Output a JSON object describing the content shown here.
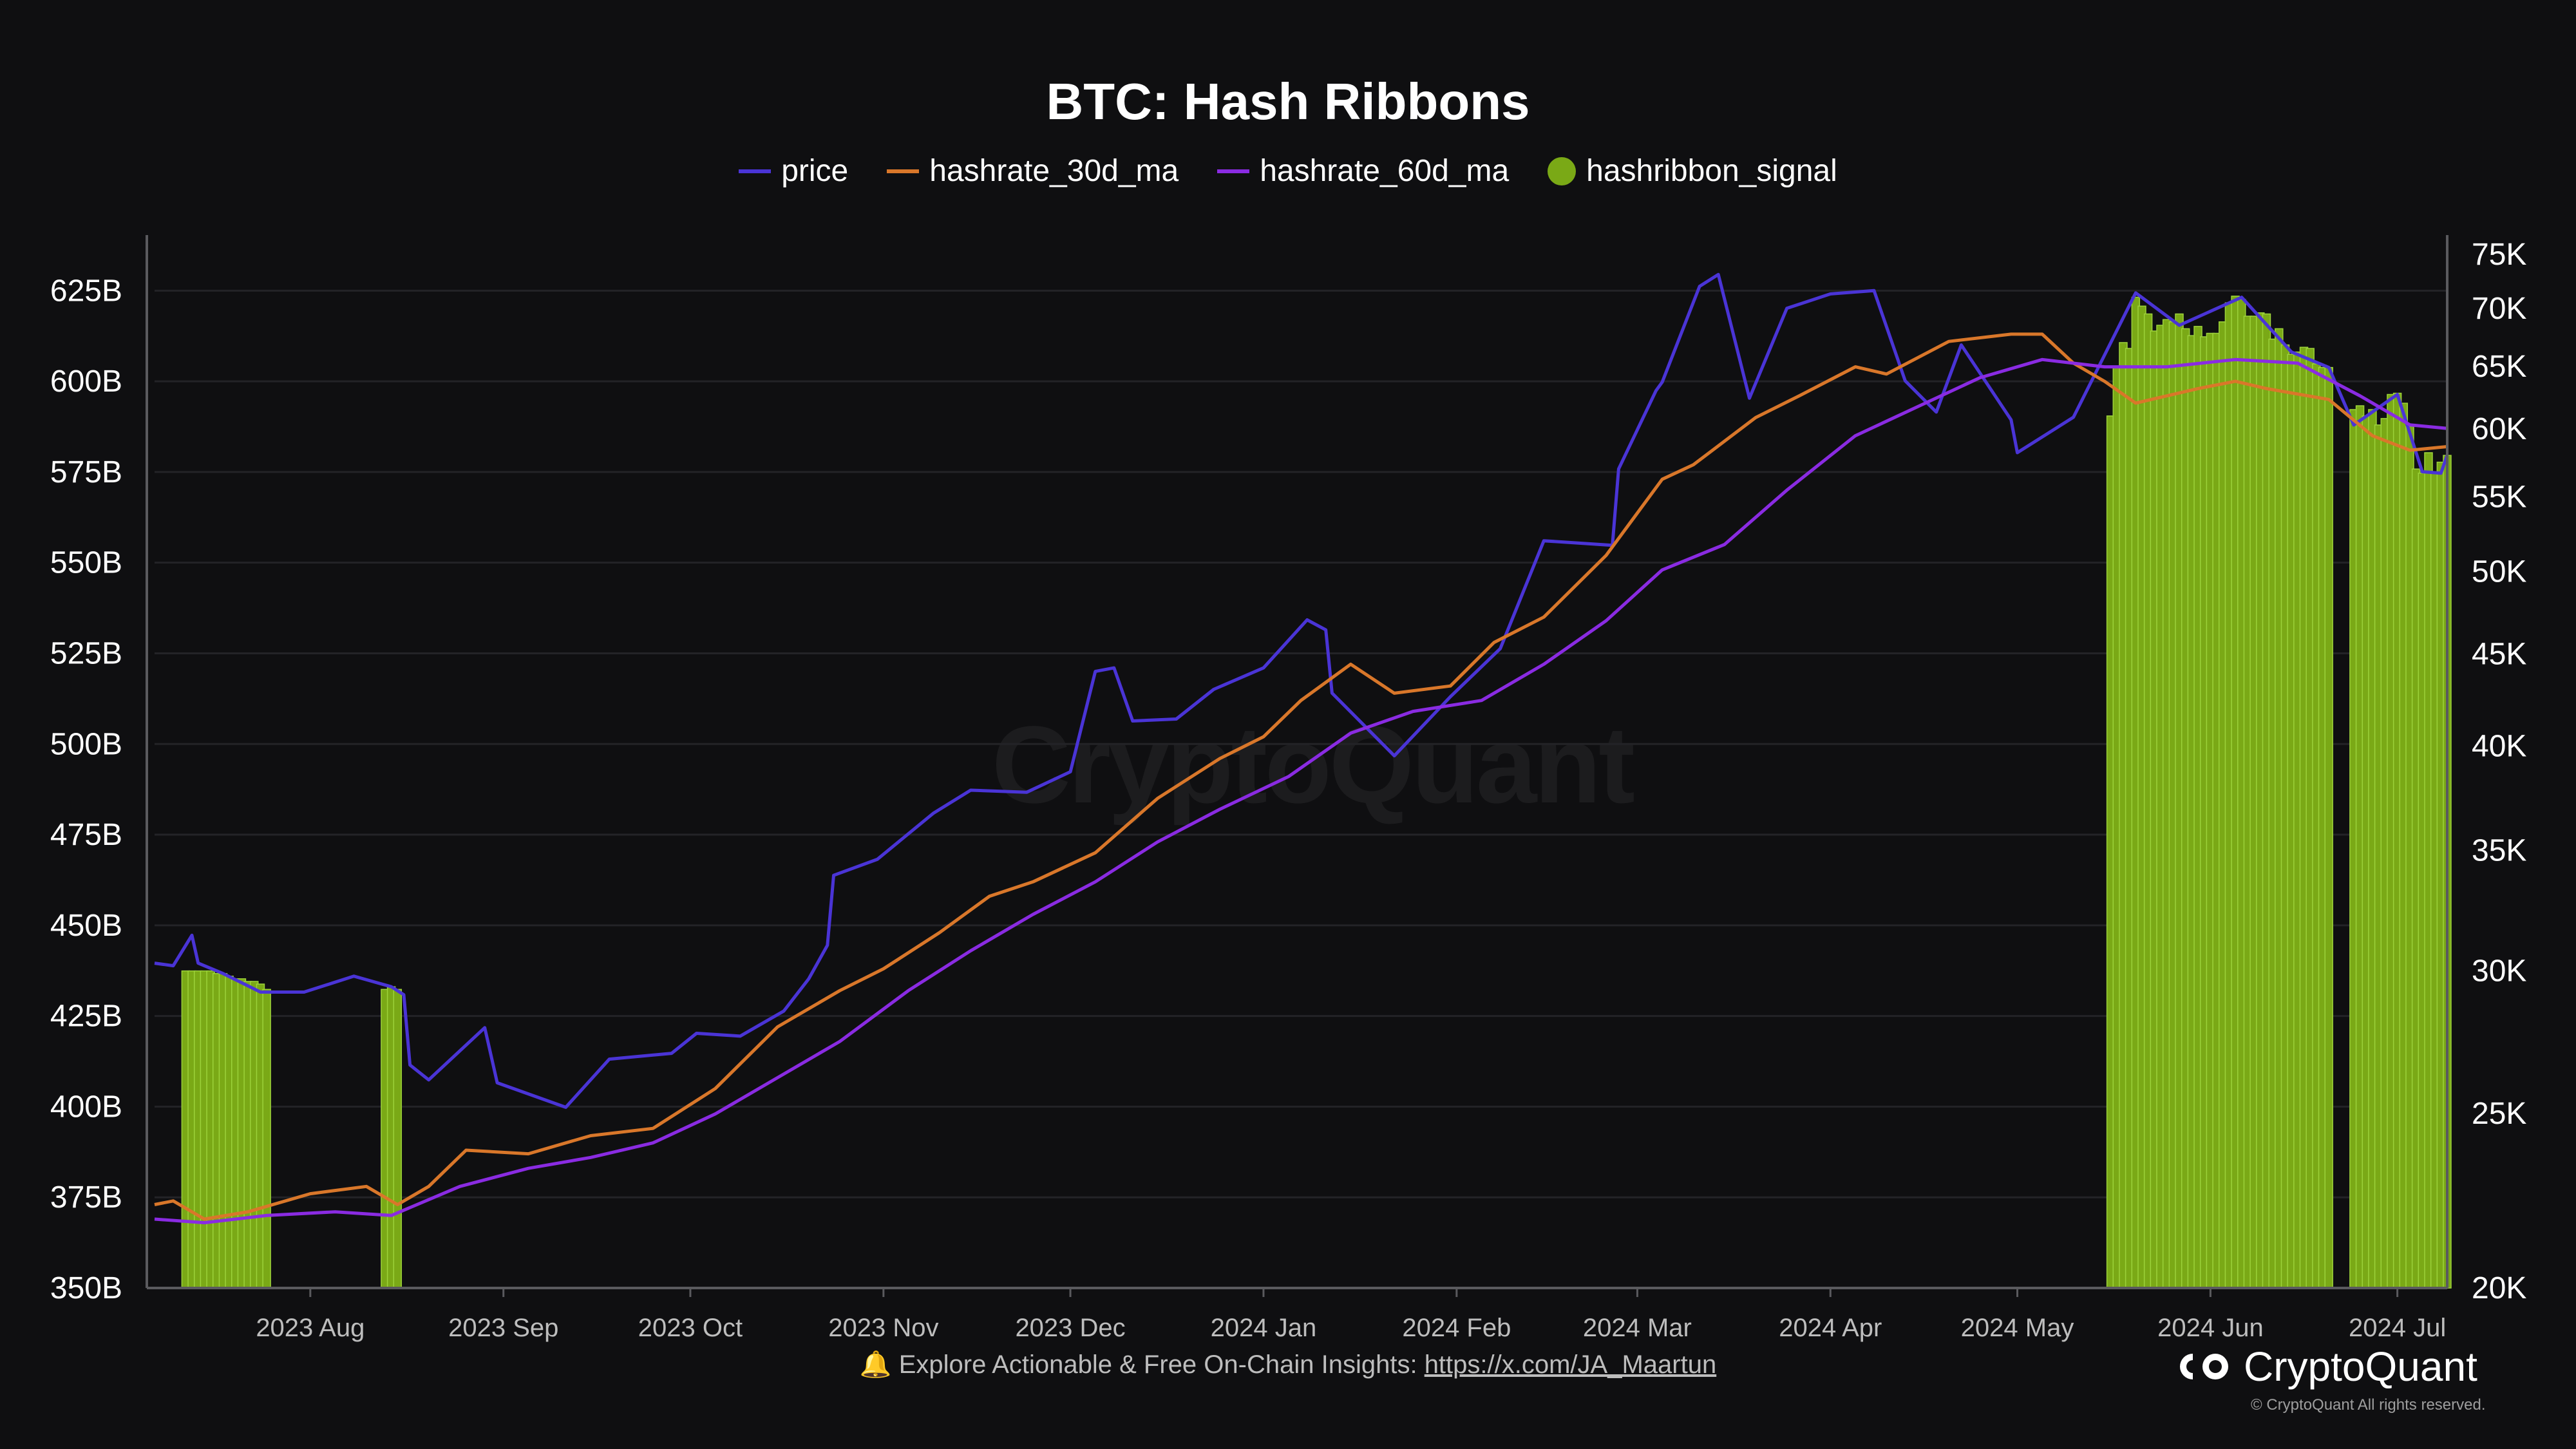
{
  "colors": {
    "price": "#4a34d6",
    "hashrate_30d_ma": "#d9772a",
    "hashrate_60d_ma": "#8a2be2",
    "hashribbon_signal": "#7aa916",
    "background": "#0f0f11",
    "grid": "#232327"
  },
  "footer": {
    "note_icon": "bell-icon",
    "note_text": "🔔 Explore Actionable & Free On-Chain Insights:",
    "note_link": "https://x.com/JA_Maartun"
  },
  "brand": {
    "name": "CryptoQuant",
    "copyright": "© CryptoQuant All rights reserved.",
    "watermark": "CryptoQuant"
  },
  "chart_data": {
    "type": "line",
    "title": "BTC: Hash Ribbons",
    "legend": [
      "price",
      "hashrate_30d_ma",
      "hashrate_60d_ma",
      "hashribbon_signal"
    ],
    "legend_position": "top-center",
    "grid": true,
    "x_range": [
      "2023-07-07",
      "2024-07-09"
    ],
    "x_ticks": [
      {
        "date": "2023-08-01",
        "label": "2023 Aug"
      },
      {
        "date": "2023-09-01",
        "label": "2023 Sep"
      },
      {
        "date": "2023-10-01",
        "label": "2023 Oct"
      },
      {
        "date": "2023-11-01",
        "label": "2023 Nov"
      },
      {
        "date": "2023-12-01",
        "label": "2023 Dec"
      },
      {
        "date": "2024-01-01",
        "label": "2024 Jan"
      },
      {
        "date": "2024-02-01",
        "label": "2024 Feb"
      },
      {
        "date": "2024-03-01",
        "label": "2024 Mar"
      },
      {
        "date": "2024-04-01",
        "label": "2024 Apr"
      },
      {
        "date": "2024-05-01",
        "label": "2024 May"
      },
      {
        "date": "2024-06-01",
        "label": "2024 Jun"
      },
      {
        "date": "2024-07-01",
        "label": "2024 Jul"
      }
    ],
    "y_left": {
      "ylim": [
        350,
        635
      ],
      "ticks": [
        {
          "v": 350,
          "label": "350B"
        },
        {
          "v": 375,
          "label": "375B"
        },
        {
          "v": 400,
          "label": "400B"
        },
        {
          "v": 425,
          "label": "425B"
        },
        {
          "v": 450,
          "label": "450B"
        },
        {
          "v": 475,
          "label": "475B"
        },
        {
          "v": 500,
          "label": "500B"
        },
        {
          "v": 525,
          "label": "525B"
        },
        {
          "v": 550,
          "label": "550B"
        },
        {
          "v": 575,
          "label": "575B"
        },
        {
          "v": 600,
          "label": "600B"
        },
        {
          "v": 625,
          "label": "625B"
        }
      ]
    },
    "y_right": {
      "scale": "log",
      "ylim": [
        20000,
        75000
      ],
      "ticks": [
        {
          "v": 20000,
          "label": "20K"
        },
        {
          "v": 25000,
          "label": "25K"
        },
        {
          "v": 30000,
          "label": "30K"
        },
        {
          "v": 35000,
          "label": "35K"
        },
        {
          "v": 40000,
          "label": "40K"
        },
        {
          "v": 45000,
          "label": "45K"
        },
        {
          "v": 50000,
          "label": "50K"
        },
        {
          "v": 55000,
          "label": "55K"
        },
        {
          "v": 60000,
          "label": "60K"
        },
        {
          "v": 65000,
          "label": "65K"
        },
        {
          "v": 70000,
          "label": "70K"
        },
        {
          "v": 75000,
          "label": "75K"
        }
      ]
    },
    "series": [
      {
        "name": "price",
        "axis": "right",
        "points": [
          [
            "2023-07-07",
            30300
          ],
          [
            "2023-07-10",
            30200
          ],
          [
            "2023-07-13",
            31400
          ],
          [
            "2023-07-14",
            30300
          ],
          [
            "2023-07-18",
            29900
          ],
          [
            "2023-07-24",
            29200
          ],
          [
            "2023-07-31",
            29200
          ],
          [
            "2023-08-08",
            29800
          ],
          [
            "2023-08-14",
            29400
          ],
          [
            "2023-08-16",
            29100
          ],
          [
            "2023-08-17",
            26600
          ],
          [
            "2023-08-20",
            26100
          ],
          [
            "2023-08-29",
            27900
          ],
          [
            "2023-08-31",
            26000
          ],
          [
            "2023-09-11",
            25200
          ],
          [
            "2023-09-18",
            26800
          ],
          [
            "2023-09-28",
            27000
          ],
          [
            "2023-10-02",
            27700
          ],
          [
            "2023-10-09",
            27600
          ],
          [
            "2023-10-16",
            28500
          ],
          [
            "2023-10-20",
            29700
          ],
          [
            "2023-10-23",
            31000
          ],
          [
            "2023-10-24",
            33900
          ],
          [
            "2023-10-31",
            34600
          ],
          [
            "2023-11-09",
            36700
          ],
          [
            "2023-11-15",
            37800
          ],
          [
            "2023-11-24",
            37700
          ],
          [
            "2023-12-01",
            38700
          ],
          [
            "2023-12-05",
            44000
          ],
          [
            "2023-12-08",
            44200
          ],
          [
            "2023-12-11",
            41300
          ],
          [
            "2023-12-18",
            41400
          ],
          [
            "2023-12-24",
            43000
          ],
          [
            "2024-01-01",
            44200
          ],
          [
            "2024-01-08",
            47000
          ],
          [
            "2024-01-11",
            46400
          ],
          [
            "2024-01-12",
            42800
          ],
          [
            "2024-01-22",
            39500
          ],
          [
            "2024-01-31",
            42600
          ],
          [
            "2024-02-08",
            45300
          ],
          [
            "2024-02-15",
            52000
          ],
          [
            "2024-02-26",
            51700
          ],
          [
            "2024-02-27",
            57000
          ],
          [
            "2024-03-04",
            63000
          ],
          [
            "2024-03-05",
            63700
          ],
          [
            "2024-03-11",
            72000
          ],
          [
            "2024-03-14",
            73100
          ],
          [
            "2024-03-19",
            62400
          ],
          [
            "2024-03-25",
            70000
          ],
          [
            "2024-04-01",
            71300
          ],
          [
            "2024-04-08",
            71600
          ],
          [
            "2024-04-13",
            63800
          ],
          [
            "2024-04-18",
            61300
          ],
          [
            "2024-04-22",
            66800
          ],
          [
            "2024-04-30",
            60700
          ],
          [
            "2024-05-01",
            58200
          ],
          [
            "2024-05-10",
            60900
          ],
          [
            "2024-05-20",
            71400
          ],
          [
            "2024-05-27",
            68500
          ],
          [
            "2024-06-06",
            71000
          ],
          [
            "2024-06-14",
            66200
          ],
          [
            "2024-06-20",
            64900
          ],
          [
            "2024-06-24",
            60300
          ],
          [
            "2024-07-01",
            62700
          ],
          [
            "2024-07-05",
            56800
          ],
          [
            "2024-07-08",
            56700
          ],
          [
            "2024-07-09",
            58000
          ]
        ]
      },
      {
        "name": "hashrate_30d_ma",
        "axis": "left",
        "points": [
          [
            "2023-07-07",
            373
          ],
          [
            "2023-07-10",
            374
          ],
          [
            "2023-07-15",
            369
          ],
          [
            "2023-07-22",
            371
          ],
          [
            "2023-08-01",
            376
          ],
          [
            "2023-08-10",
            378
          ],
          [
            "2023-08-15",
            373
          ],
          [
            "2023-08-20",
            378
          ],
          [
            "2023-08-26",
            388
          ],
          [
            "2023-09-05",
            387
          ],
          [
            "2023-09-15",
            392
          ],
          [
            "2023-09-25",
            394
          ],
          [
            "2023-10-05",
            405
          ],
          [
            "2023-10-15",
            422
          ],
          [
            "2023-10-25",
            432
          ],
          [
            "2023-11-01",
            438
          ],
          [
            "2023-11-10",
            448
          ],
          [
            "2023-11-18",
            458
          ],
          [
            "2023-11-25",
            462
          ],
          [
            "2023-12-05",
            470
          ],
          [
            "2023-12-15",
            485
          ],
          [
            "2023-12-25",
            496
          ],
          [
            "2024-01-01",
            502
          ],
          [
            "2024-01-07",
            512
          ],
          [
            "2024-01-15",
            522
          ],
          [
            "2024-01-22",
            514
          ],
          [
            "2024-01-31",
            516
          ],
          [
            "2024-02-07",
            528
          ],
          [
            "2024-02-15",
            535
          ],
          [
            "2024-02-25",
            552
          ],
          [
            "2024-03-05",
            573
          ],
          [
            "2024-03-10",
            577
          ],
          [
            "2024-03-20",
            590
          ],
          [
            "2024-03-27",
            596
          ],
          [
            "2024-04-05",
            604
          ],
          [
            "2024-04-10",
            602
          ],
          [
            "2024-04-20",
            611
          ],
          [
            "2024-04-30",
            613
          ],
          [
            "2024-05-05",
            613
          ],
          [
            "2024-05-10",
            605
          ],
          [
            "2024-05-15",
            600
          ],
          [
            "2024-05-20",
            594
          ],
          [
            "2024-05-30",
            598
          ],
          [
            "2024-06-05",
            600
          ],
          [
            "2024-06-10",
            598
          ],
          [
            "2024-06-20",
            595
          ],
          [
            "2024-06-27",
            585
          ],
          [
            "2024-07-03",
            581
          ],
          [
            "2024-07-09",
            582
          ]
        ]
      },
      {
        "name": "hashrate_60d_ma",
        "axis": "left",
        "points": [
          [
            "2023-07-07",
            369
          ],
          [
            "2023-07-15",
            368
          ],
          [
            "2023-07-25",
            370
          ],
          [
            "2023-08-05",
            371
          ],
          [
            "2023-08-14",
            370
          ],
          [
            "2023-08-25",
            378
          ],
          [
            "2023-09-05",
            383
          ],
          [
            "2023-09-15",
            386
          ],
          [
            "2023-09-25",
            390
          ],
          [
            "2023-10-05",
            398
          ],
          [
            "2023-10-15",
            408
          ],
          [
            "2023-10-25",
            418
          ],
          [
            "2023-11-05",
            432
          ],
          [
            "2023-11-15",
            443
          ],
          [
            "2023-11-25",
            453
          ],
          [
            "2023-12-05",
            462
          ],
          [
            "2023-12-15",
            473
          ],
          [
            "2023-12-25",
            482
          ],
          [
            "2024-01-05",
            491
          ],
          [
            "2024-01-15",
            503
          ],
          [
            "2024-01-25",
            509
          ],
          [
            "2024-02-05",
            512
          ],
          [
            "2024-02-15",
            522
          ],
          [
            "2024-02-25",
            534
          ],
          [
            "2024-03-05",
            548
          ],
          [
            "2024-03-15",
            555
          ],
          [
            "2024-03-25",
            570
          ],
          [
            "2024-04-05",
            585
          ],
          [
            "2024-04-15",
            593
          ],
          [
            "2024-04-25",
            601
          ],
          [
            "2024-05-05",
            606
          ],
          [
            "2024-05-15",
            604
          ],
          [
            "2024-05-25",
            604
          ],
          [
            "2024-06-05",
            606
          ],
          [
            "2024-06-15",
            605
          ],
          [
            "2024-06-25",
            596
          ],
          [
            "2024-07-03",
            588
          ],
          [
            "2024-07-09",
            587
          ]
        ]
      }
    ],
    "hashribbon_signal": {
      "axis": "right",
      "bars": [
        [
          "2023-07-12",
          30000
        ],
        [
          "2023-07-13",
          30000
        ],
        [
          "2023-07-14",
          30000
        ],
        [
          "2023-07-15",
          30000
        ],
        [
          "2023-07-16",
          30000
        ],
        [
          "2023-07-17",
          29900
        ],
        [
          "2023-07-18",
          29900
        ],
        [
          "2023-07-19",
          29800
        ],
        [
          "2023-07-20",
          29700
        ],
        [
          "2023-07-21",
          29700
        ],
        [
          "2023-07-22",
          29600
        ],
        [
          "2023-07-23",
          29600
        ],
        [
          "2023-07-24",
          29500
        ],
        [
          "2023-07-25",
          29300
        ],
        [
          "2023-08-13",
          29300
        ],
        [
          "2023-08-14",
          29400
        ],
        [
          "2023-08-15",
          29300
        ],
        [
          "2024-05-16",
          61000
        ],
        [
          "2024-05-17",
          65000
        ],
        [
          "2024-05-18",
          67000
        ],
        [
          "2024-05-19",
          66500
        ],
        [
          "2024-05-20",
          71000
        ],
        [
          "2024-05-21",
          70200
        ],
        [
          "2024-05-22",
          69500
        ],
        [
          "2024-05-23",
          68000
        ],
        [
          "2024-05-24",
          68500
        ],
        [
          "2024-05-25",
          69000
        ],
        [
          "2024-05-26",
          68800
        ],
        [
          "2024-05-27",
          69500
        ],
        [
          "2024-05-28",
          68200
        ],
        [
          "2024-05-29",
          67600
        ],
        [
          "2024-05-30",
          68400
        ],
        [
          "2024-05-31",
          67500
        ],
        [
          "2024-06-01",
          67800
        ],
        [
          "2024-06-02",
          67800
        ],
        [
          "2024-06-03",
          68800
        ],
        [
          "2024-06-04",
          70500
        ],
        [
          "2024-06-05",
          71100
        ],
        [
          "2024-06-06",
          70800
        ],
        [
          "2024-06-07",
          69300
        ],
        [
          "2024-06-08",
          69300
        ],
        [
          "2024-06-09",
          69600
        ],
        [
          "2024-06-10",
          69500
        ],
        [
          "2024-06-11",
          67300
        ],
        [
          "2024-06-12",
          68200
        ],
        [
          "2024-06-13",
          66800
        ],
        [
          "2024-06-14",
          66000
        ],
        [
          "2024-06-15",
          66200
        ],
        [
          "2024-06-16",
          66600
        ],
        [
          "2024-06-17",
          66500
        ],
        [
          "2024-06-18",
          65200
        ],
        [
          "2024-06-19",
          64900
        ],
        [
          "2024-06-20",
          64900
        ],
        [
          "2024-06-24",
          61500
        ],
        [
          "2024-06-25",
          61800
        ],
        [
          "2024-06-26",
          61000
        ],
        [
          "2024-06-27",
          61500
        ],
        [
          "2024-06-28",
          60300
        ],
        [
          "2024-06-29",
          60800
        ],
        [
          "2024-06-30",
          62700
        ],
        [
          "2024-07-01",
          62800
        ],
        [
          "2024-07-02",
          62000
        ],
        [
          "2024-07-03",
          60200
        ],
        [
          "2024-07-04",
          57000
        ],
        [
          "2024-07-05",
          56700
        ],
        [
          "2024-07-06",
          58200
        ],
        [
          "2024-07-07",
          56700
        ],
        [
          "2024-07-08",
          57500
        ],
        [
          "2024-07-09",
          58000
        ]
      ]
    }
  }
}
